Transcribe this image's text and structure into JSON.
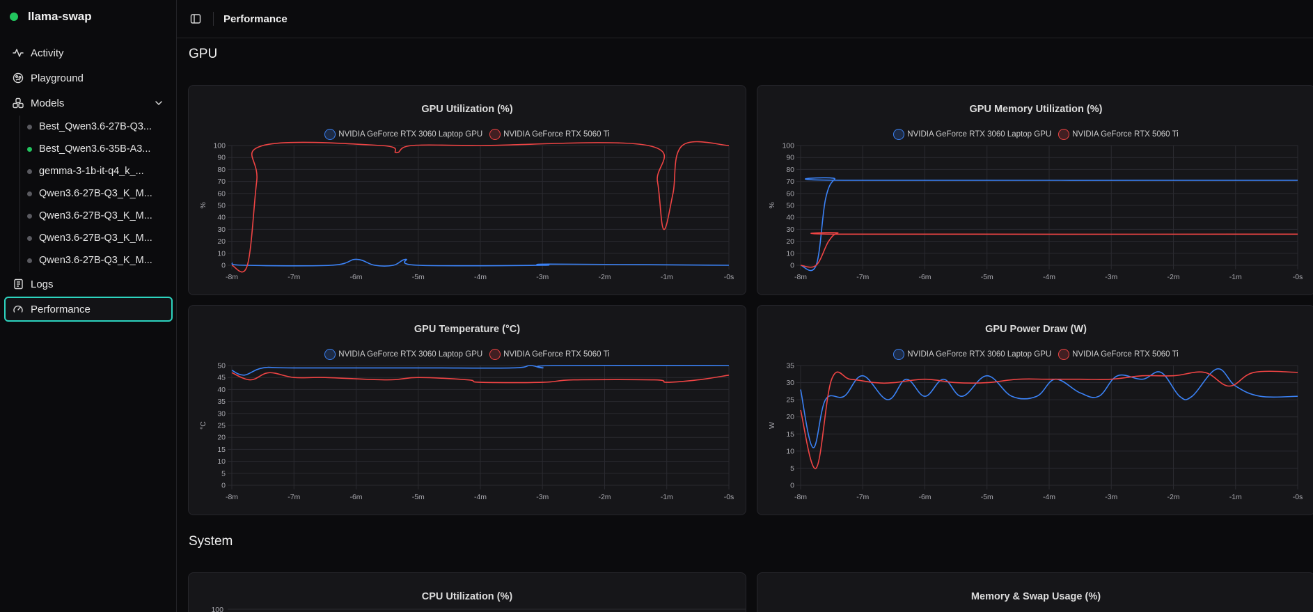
{
  "app": {
    "title": "llama-swap"
  },
  "nav": {
    "activity": "Activity",
    "playground": "Playground",
    "models": "Models",
    "logs": "Logs",
    "performance": "Performance"
  },
  "models": [
    {
      "name": "Best_Qwen3.6-27B-Q3...",
      "active": false
    },
    {
      "name": "Best_Qwen3.6-35B-A3...",
      "active": true
    },
    {
      "name": "gemma-3-1b-it-q4_k_...",
      "active": false
    },
    {
      "name": "Qwen3.6-27B-Q3_K_M...",
      "active": false
    },
    {
      "name": "Qwen3.6-27B-Q3_K_M...",
      "active": false
    },
    {
      "name": "Qwen3.6-27B-Q3_K_M...",
      "active": false
    },
    {
      "name": "Qwen3.6-27B-Q3_K_M...",
      "active": false
    }
  ],
  "header": {
    "title": "Performance"
  },
  "sections": {
    "gpu": "GPU",
    "system": "System"
  },
  "colors": {
    "series1": "#3b82f6",
    "series2": "#ef4444",
    "accent": "#2dd4bf",
    "online": "#22c55e"
  },
  "chart_data": [
    {
      "type": "line",
      "title": "GPU Utilization (%)",
      "ylabel": "%",
      "ylim": [
        0,
        100
      ],
      "yticks": [
        0,
        10,
        20,
        30,
        40,
        50,
        60,
        70,
        80,
        90,
        100
      ],
      "xlim": [
        -8,
        0
      ],
      "xticks": [
        "-8m",
        "-7m",
        "-6m",
        "-5m",
        "-4m",
        "-3m",
        "-2m",
        "-1m",
        "-0s"
      ],
      "legend": "top-center",
      "series": [
        {
          "name": "NVIDIA GeForce RTX 3060 Laptop GPU",
          "x": [
            -8,
            -7.8,
            -6.4,
            -6,
            -5.7,
            -5.4,
            -5.2,
            -5,
            -3,
            -2.9,
            0
          ],
          "y": [
            2,
            0,
            0,
            5,
            0,
            0,
            5,
            0,
            0,
            1,
            0
          ]
        },
        {
          "name": "NVIDIA GeForce RTX 5060 Ti",
          "x": [
            -8,
            -7.75,
            -7.6,
            -7.5,
            -5.6,
            -5.35,
            -5.1,
            -4,
            -1.3,
            -1.15,
            -1.05,
            -0.9,
            -0.75,
            0
          ],
          "y": [
            0,
            0,
            70,
            100,
            100,
            94,
            100,
            100,
            100,
            70,
            30,
            60,
            100,
            100
          ]
        }
      ]
    },
    {
      "type": "line",
      "title": "GPU Memory Utilization (%)",
      "ylabel": "%",
      "ylim": [
        0,
        100
      ],
      "yticks": [
        0,
        10,
        20,
        30,
        40,
        50,
        60,
        70,
        80,
        90,
        100
      ],
      "xlim": [
        -8,
        0
      ],
      "xticks": [
        "-8m",
        "-7m",
        "-6m",
        "-5m",
        "-4m",
        "-3m",
        "-2m",
        "-1m",
        "-0s"
      ],
      "legend": "top-center",
      "series": [
        {
          "name": "NVIDIA GeForce RTX 3060 Laptop GPU",
          "x": [
            -8,
            -7.75,
            -7.6,
            -7.45,
            -7.3,
            0
          ],
          "y": [
            0,
            0,
            55,
            72,
            71,
            71
          ]
        },
        {
          "name": "NVIDIA GeForce RTX 5060 Ti",
          "x": [
            -8,
            -7.75,
            -7.55,
            -7.4,
            -7.2,
            0
          ],
          "y": [
            0,
            0,
            20,
            27,
            26,
            26
          ]
        }
      ]
    },
    {
      "type": "line",
      "title": "GPU Temperature (°C)",
      "ylabel": "°C",
      "ylim": [
        0,
        50
      ],
      "yticks": [
        0,
        5,
        10,
        15,
        20,
        25,
        30,
        35,
        40,
        45,
        50
      ],
      "xlim": [
        -8,
        0
      ],
      "xticks": [
        "-8m",
        "-7m",
        "-6m",
        "-5m",
        "-4m",
        "-3m",
        "-2m",
        "-1m",
        "-0s"
      ],
      "legend": "top-center",
      "series": [
        {
          "name": "NVIDIA GeForce RTX 3060 Laptop GPU",
          "x": [
            -8,
            -7.8,
            -7.5,
            -7,
            -5,
            -3.5,
            -3.2,
            -3,
            -2.8,
            0
          ],
          "y": [
            48,
            46,
            49,
            49,
            49,
            49,
            50,
            49,
            50,
            50
          ]
        },
        {
          "name": "NVIDIA GeForce RTX 5060 Ti",
          "x": [
            -8,
            -7.7,
            -7.4,
            -7,
            -6.5,
            -5.5,
            -5,
            -4.2,
            -4,
            -3,
            -2.5,
            -1.2,
            -1,
            -0.5,
            0
          ],
          "y": [
            47,
            44,
            47,
            45,
            45,
            44,
            45,
            44,
            43,
            43,
            44,
            44,
            43,
            44,
            46
          ]
        }
      ]
    },
    {
      "type": "line",
      "title": "GPU Power Draw (W)",
      "ylabel": "W",
      "ylim": [
        0,
        35
      ],
      "yticks": [
        0,
        5,
        10,
        15,
        20,
        25,
        30,
        35
      ],
      "xlim": [
        -8,
        0
      ],
      "xticks": [
        "-8m",
        "-7m",
        "-6m",
        "-5m",
        "-4m",
        "-3m",
        "-2m",
        "-1m",
        "-0s"
      ],
      "legend": "top-center",
      "series": [
        {
          "name": "NVIDIA GeForce RTX 3060 Laptop GPU",
          "x": [
            -8,
            -7.8,
            -7.6,
            -7.3,
            -7,
            -6.6,
            -6.3,
            -6,
            -5.7,
            -5.4,
            -5,
            -4.6,
            -4.2,
            -3.9,
            -3.5,
            -3.2,
            -2.9,
            -2.5,
            -2.2,
            -1.9,
            -1.7,
            -1.3,
            -1,
            -0.6,
            0
          ],
          "y": [
            28,
            11,
            25,
            26,
            32,
            25,
            31,
            26,
            31,
            26,
            32,
            26,
            26,
            31,
            27,
            26,
            32,
            31,
            33,
            26,
            26,
            34,
            29,
            26,
            26
          ]
        },
        {
          "name": "NVIDIA GeForce RTX 5060 Ti",
          "x": [
            -8,
            -7.75,
            -7.5,
            -7.2,
            -6.8,
            -6.5,
            -6,
            -5.5,
            -5,
            -4.5,
            -4,
            -3.5,
            -3,
            -2.5,
            -2,
            -1.5,
            -1.1,
            -0.7,
            0
          ],
          "y": [
            22,
            5,
            31,
            31,
            30,
            30,
            31,
            30,
            30,
            31,
            31,
            31,
            31,
            32,
            32,
            33,
            29,
            33,
            33
          ]
        }
      ]
    },
    {
      "type": "line",
      "title": "CPU Utilization (%)",
      "yticks": [
        100
      ]
    },
    {
      "type": "line",
      "title": "Memory & Swap Usage (%)"
    }
  ]
}
